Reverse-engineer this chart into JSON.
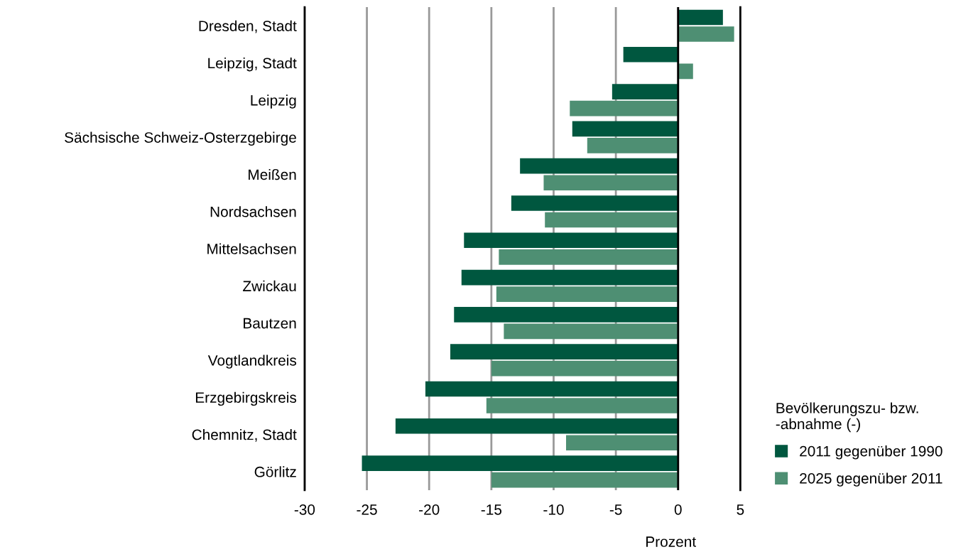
{
  "chart_data": {
    "type": "bar",
    "orientation": "horizontal",
    "xlabel": "Prozent",
    "legend_title": "Bevölkerungszu- bzw.\n-abnahme (-)",
    "legend": "bottom right",
    "categories": [
      "Dresden, Stadt",
      "Leipzig, Stadt",
      "Leipzig",
      "Sächsische Schweiz-Osterzgebirge",
      "Meißen",
      "Nordsachsen",
      "Mittelsachsen",
      "Zwickau",
      "Bautzen",
      "Vogtlandkreis",
      "Erzgebirgskreis",
      "Chemnitz, Stadt",
      "Görlitz"
    ],
    "series": [
      {
        "name": "2011 gegenüber 1990",
        "color": "#00573f",
        "values": [
          3.6,
          -4.4,
          -5.3,
          -8.5,
          -12.7,
          -13.4,
          -17.2,
          -17.4,
          -18.0,
          -18.3,
          -20.3,
          -22.7,
          -25.4
        ]
      },
      {
        "name": "2025 gegenüber 2011",
        "color": "#4e8f73",
        "values": [
          4.5,
          1.2,
          -8.7,
          -7.3,
          -10.8,
          -10.7,
          -14.4,
          -14.6,
          -14.0,
          -15.0,
          -15.4,
          -9.0,
          -15.0
        ]
      }
    ],
    "xlim": [
      -30,
      5
    ],
    "xticks": [
      -30,
      -25,
      -20,
      -15,
      -10,
      -5,
      0,
      5
    ],
    "grid": "x",
    "ref_lines": [
      {
        "axis": "x",
        "value": 0,
        "color": "#000000"
      }
    ]
  }
}
